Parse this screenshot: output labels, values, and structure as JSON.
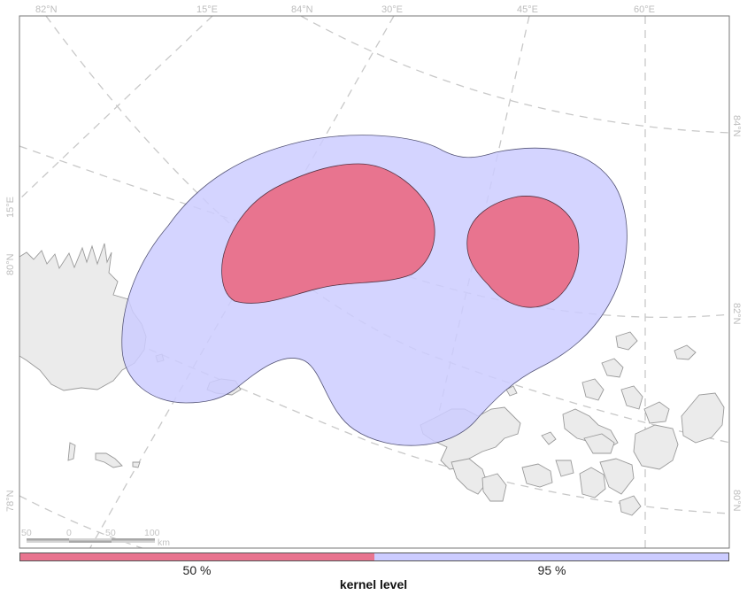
{
  "map": {
    "graticule_labels_top": [
      "82°N",
      "15°E",
      "84°N",
      "30°E",
      "45°E",
      "60°E"
    ],
    "graticule_labels_left": [
      "15°E",
      "80°N",
      "78°N"
    ],
    "graticule_labels_right": [
      "84°N",
      "82°N",
      "80°N"
    ],
    "scale_bar": {
      "ticks": [
        "50",
        "0",
        "50",
        "100"
      ],
      "unit": "km"
    }
  },
  "legend": {
    "title": "kernel level",
    "levels": [
      {
        "label": "50 %",
        "color": "#e8748f"
      },
      {
        "label": "95 %",
        "color": "#ccccff"
      }
    ]
  }
}
